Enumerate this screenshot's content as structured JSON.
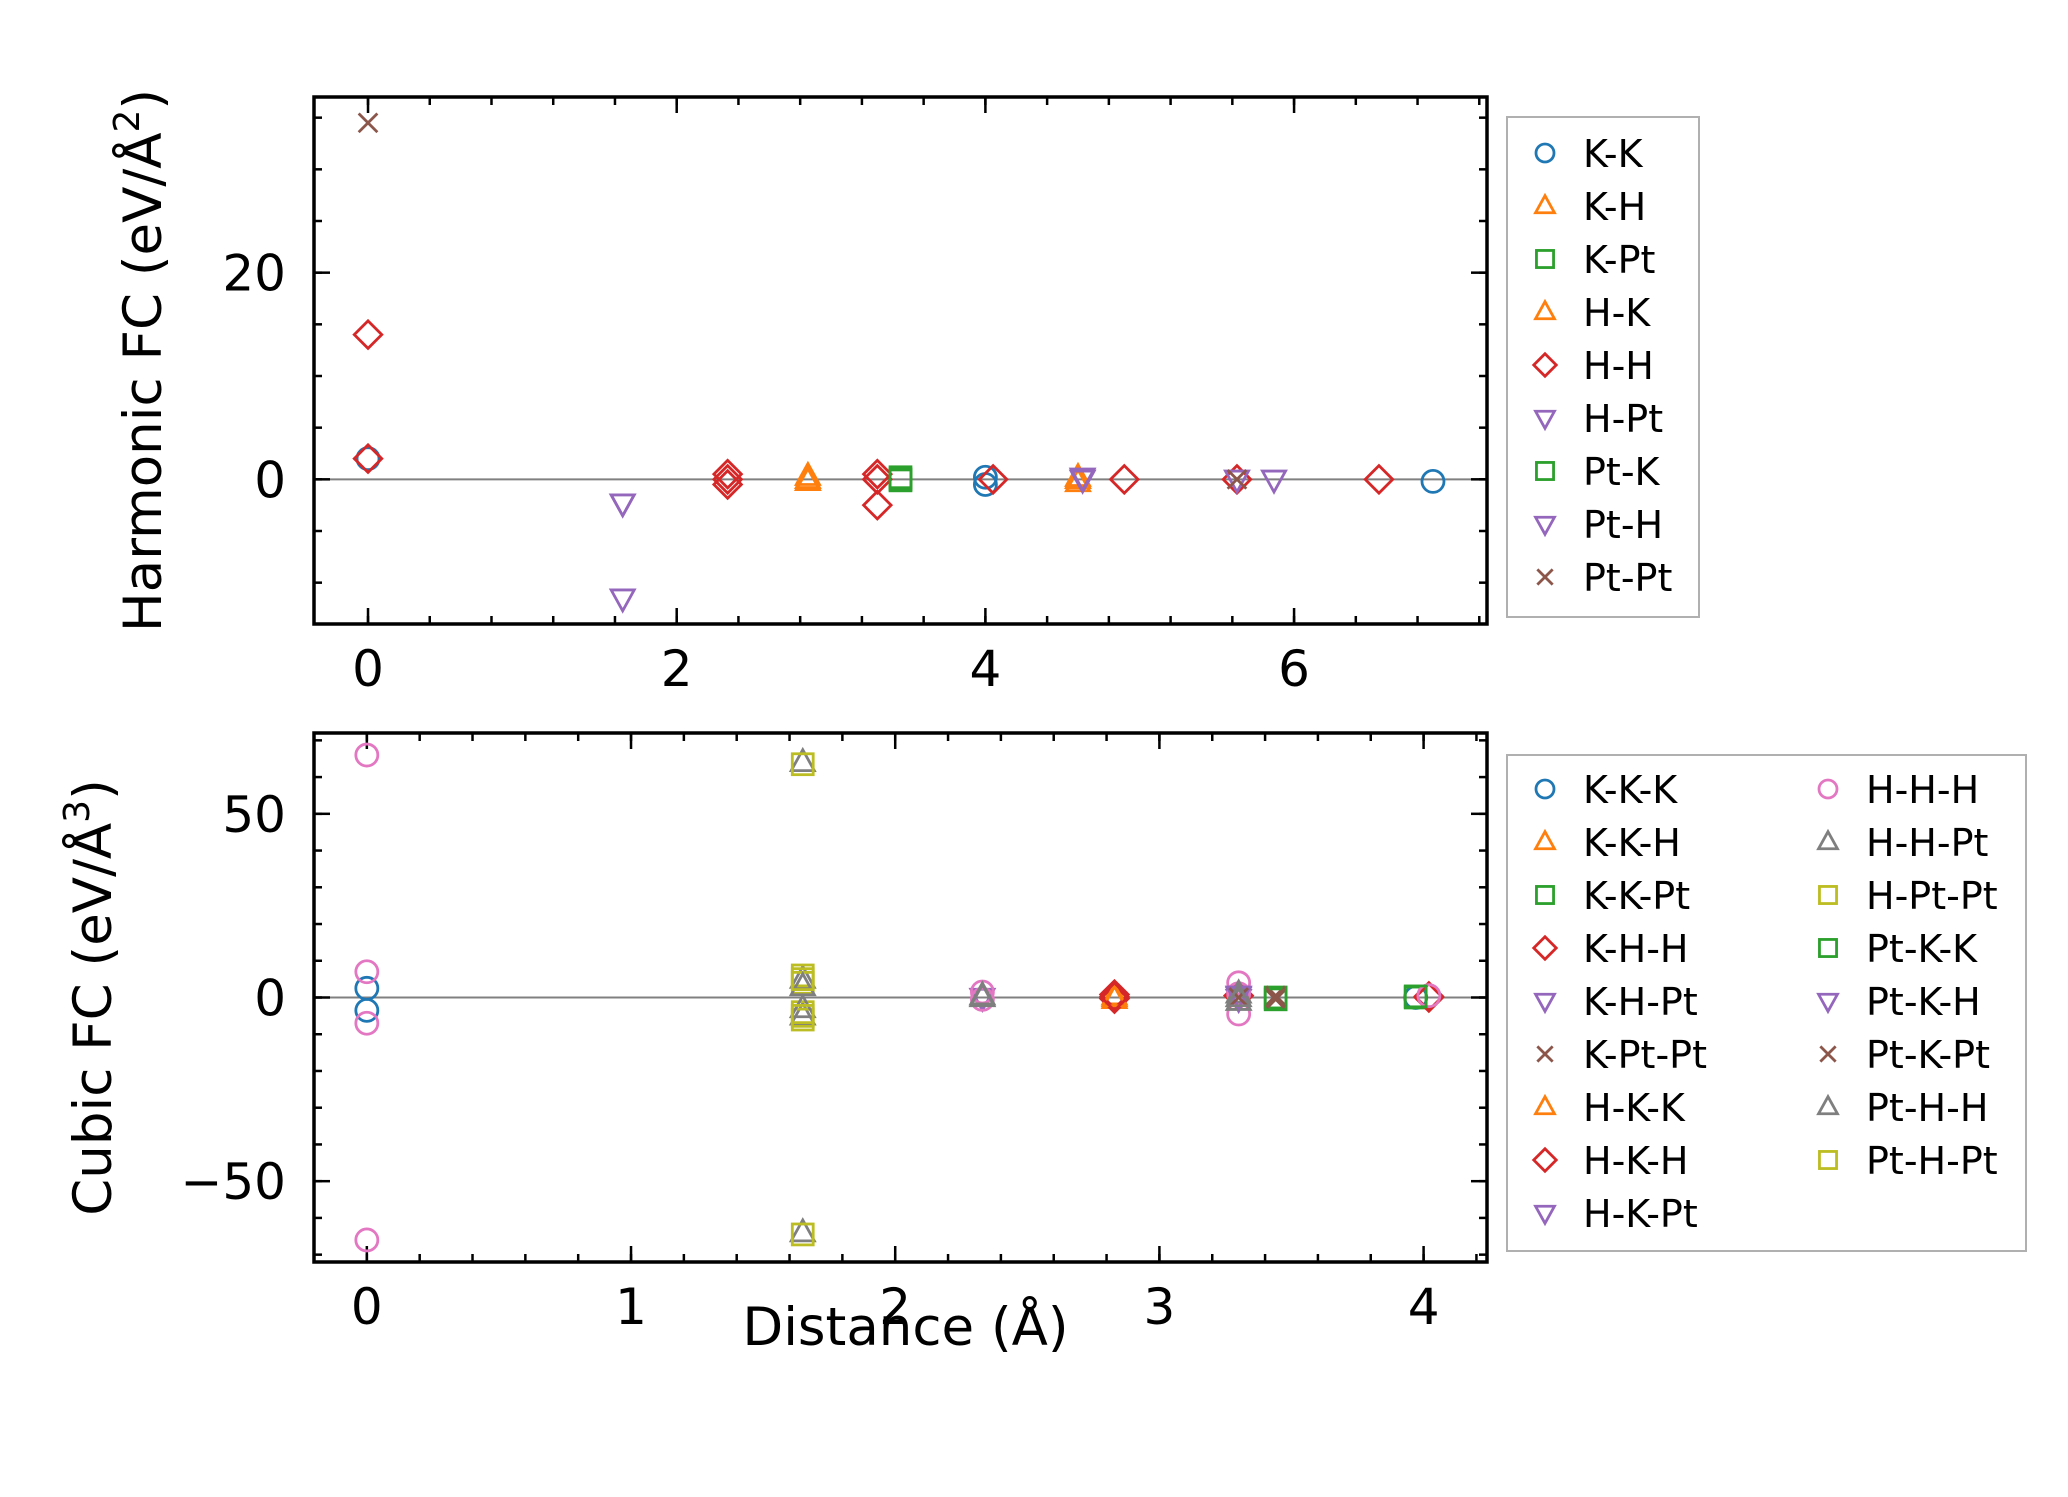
{
  "colors": {
    "blue": "#1f77b4",
    "orange": "#ff7f0e",
    "green": "#2ca02c",
    "red": "#d62728",
    "purple": "#9467bd",
    "brown": "#8c564b",
    "pink": "#e377c2",
    "gray": "#7f7f7f",
    "olive": "#bcbd22"
  },
  "chart_data": [
    {
      "type": "scatter",
      "title": "",
      "xlabel": "",
      "ylabel": "Harmonic FC (eV/Å²)",
      "ylabel_main": "Harmonic FC (eV/Å",
      "ylabel_sup": "2",
      "ylabel_close": ")",
      "xlim": [
        -0.35,
        7.25
      ],
      "ylim": [
        -14,
        37
      ],
      "xticks": [
        0,
        2,
        4,
        6
      ],
      "xtick_labels": [
        "0",
        "2",
        "4",
        "6"
      ],
      "yticks": [
        0,
        20
      ],
      "ytick_labels": [
        "0",
        "20"
      ],
      "x_minor_step": 0.4,
      "y_minor_step": 5,
      "zero_line": true,
      "legend_position": "outside-right",
      "legend_columns": 1,
      "series": [
        {
          "name": "K-K",
          "marker": "circle",
          "color": "blue",
          "points": [
            [
              0,
              2
            ],
            [
              4.0,
              -0.5
            ],
            [
              4.0,
              0.2
            ],
            [
              6.9,
              -0.2
            ]
          ]
        },
        {
          "name": "K-H",
          "marker": "triangle-up",
          "color": "orange",
          "points": [
            [
              2.85,
              0
            ],
            [
              2.85,
              0.3
            ],
            [
              4.6,
              -0.3
            ],
            [
              4.6,
              0.2
            ]
          ]
        },
        {
          "name": "K-Pt",
          "marker": "square",
          "color": "green",
          "points": [
            [
              3.45,
              -0.1
            ],
            [
              3.45,
              0.2
            ]
          ]
        },
        {
          "name": "H-K",
          "marker": "triangle-up",
          "color": "orange",
          "points": [
            [
              2.85,
              -0.2
            ],
            [
              4.6,
              0
            ]
          ]
        },
        {
          "name": "H-H",
          "marker": "diamond",
          "color": "red",
          "points": [
            [
              0,
              14
            ],
            [
              0,
              2
            ],
            [
              2.33,
              0.5
            ],
            [
              2.33,
              -0.5
            ],
            [
              2.33,
              0
            ],
            [
              3.3,
              0.5
            ],
            [
              3.3,
              -2.5
            ],
            [
              3.3,
              0
            ],
            [
              4.05,
              0
            ],
            [
              4.9,
              0
            ],
            [
              5.63,
              0
            ],
            [
              6.55,
              0
            ]
          ]
        },
        {
          "name": "H-Pt",
          "marker": "triangle-down",
          "color": "purple",
          "points": [
            [
              1.65,
              -2.3
            ],
            [
              1.65,
              -11.5
            ],
            [
              4.63,
              0
            ],
            [
              5.63,
              0
            ],
            [
              5.87,
              0
            ]
          ]
        },
        {
          "name": "Pt-K",
          "marker": "square",
          "color": "green",
          "points": [
            [
              3.45,
              0
            ]
          ]
        },
        {
          "name": "Pt-H",
          "marker": "triangle-down",
          "color": "purple",
          "points": [
            [
              1.65,
              -2.3
            ],
            [
              4.63,
              0.2
            ]
          ]
        },
        {
          "name": "Pt-Pt",
          "marker": "x",
          "color": "brown",
          "points": [
            [
              0,
              34.5
            ],
            [
              5.63,
              0
            ]
          ]
        }
      ]
    },
    {
      "type": "scatter",
      "title": "",
      "xlabel": "Distance (Å)",
      "ylabel": "Cubic FC (eV/Å³)",
      "ylabel_main": "Cubic FC (eV/Å",
      "ylabel_sup": "3",
      "ylabel_close": ")",
      "xlim": [
        -0.2,
        4.24
      ],
      "ylim": [
        -72,
        72
      ],
      "xticks": [
        0,
        1,
        2,
        3,
        4
      ],
      "xtick_labels": [
        "0",
        "1",
        "2",
        "3",
        "4"
      ],
      "yticks": [
        -50,
        0,
        50
      ],
      "ytick_labels": [
        "−50",
        "0",
        "50"
      ],
      "x_minor_step": 0.2,
      "y_minor_step": 10,
      "zero_line": true,
      "legend_position": "outside-right",
      "legend_columns": 2,
      "series": [
        {
          "name": "K-K-K",
          "marker": "circle",
          "color": "blue",
          "points": [
            [
              0,
              2.5
            ],
            [
              0,
              -3.5
            ],
            [
              3.97,
              0
            ]
          ]
        },
        {
          "name": "K-K-H",
          "marker": "triangle-up",
          "color": "orange",
          "points": [
            [
              2.83,
              -0.5
            ],
            [
              2.83,
              0.5
            ]
          ]
        },
        {
          "name": "K-K-Pt",
          "marker": "square",
          "color": "green",
          "points": [
            [
              3.44,
              0
            ],
            [
              3.97,
              0
            ]
          ]
        },
        {
          "name": "K-H-H",
          "marker": "diamond",
          "color": "red",
          "points": [
            [
              2.83,
              0.8
            ],
            [
              2.83,
              -0.3
            ],
            [
              3.3,
              0.5
            ],
            [
              4.02,
              0
            ]
          ]
        },
        {
          "name": "K-H-Pt",
          "marker": "triangle-down",
          "color": "purple",
          "points": [
            [
              2.33,
              0
            ],
            [
              3.3,
              0.3
            ]
          ]
        },
        {
          "name": "K-Pt-Pt",
          "marker": "x",
          "color": "brown",
          "points": [
            [
              3.44,
              0.5
            ],
            [
              3.44,
              -0.5
            ]
          ]
        },
        {
          "name": "H-K-K",
          "marker": "triangle-up",
          "color": "orange",
          "points": [
            [
              2.83,
              0
            ]
          ]
        },
        {
          "name": "H-K-H",
          "marker": "diamond",
          "color": "red",
          "points": [
            [
              2.83,
              0.2
            ],
            [
              4.02,
              0.3
            ]
          ]
        },
        {
          "name": "H-K-Pt",
          "marker": "triangle-down",
          "color": "purple",
          "points": [
            [
              3.3,
              -0.3
            ]
          ]
        },
        {
          "name": "H-H-H",
          "marker": "circle",
          "color": "pink",
          "points": [
            [
              0,
              66
            ],
            [
              0,
              -66
            ],
            [
              0,
              7
            ],
            [
              0,
              -7
            ],
            [
              2.33,
              1.5
            ],
            [
              2.33,
              -0.5
            ],
            [
              3.3,
              4
            ],
            [
              3.3,
              -4.5
            ],
            [
              3.3,
              1
            ],
            [
              4.02,
              0.5
            ]
          ]
        },
        {
          "name": "H-H-Pt",
          "marker": "triangle-up",
          "color": "gray",
          "points": [
            [
              1.65,
              64
            ],
            [
              1.65,
              -64
            ],
            [
              1.65,
              5
            ],
            [
              1.65,
              -5
            ],
            [
              2.33,
              0
            ],
            [
              3.3,
              1
            ],
            [
              3.3,
              -1
            ]
          ]
        },
        {
          "name": "H-Pt-Pt",
          "marker": "square",
          "color": "olive",
          "points": [
            [
              1.65,
              63.5
            ],
            [
              1.65,
              -64.5
            ],
            [
              1.65,
              6
            ],
            [
              1.65,
              -6
            ],
            [
              1.65,
              4
            ],
            [
              1.65,
              -4
            ]
          ]
        },
        {
          "name": "Pt-K-K",
          "marker": "square",
          "color": "green",
          "points": [
            [
              3.44,
              -0.5
            ],
            [
              3.97,
              0.3
            ]
          ]
        },
        {
          "name": "Pt-K-H",
          "marker": "triangle-down",
          "color": "purple",
          "points": [
            [
              3.3,
              0.6
            ]
          ]
        },
        {
          "name": "Pt-K-Pt",
          "marker": "x",
          "color": "brown",
          "points": [
            [
              3.44,
              0
            ],
            [
              3.3,
              0
            ]
          ]
        },
        {
          "name": "Pt-H-H",
          "marker": "triangle-up",
          "color": "gray",
          "points": [
            [
              1.65,
              3
            ],
            [
              1.65,
              -3
            ],
            [
              2.33,
              0.5
            ],
            [
              3.3,
              0
            ]
          ]
        },
        {
          "name": "Pt-H-Pt",
          "marker": "square",
          "color": "olive",
          "points": [
            [
              1.65,
              5
            ],
            [
              1.65,
              -5
            ]
          ]
        }
      ]
    }
  ]
}
